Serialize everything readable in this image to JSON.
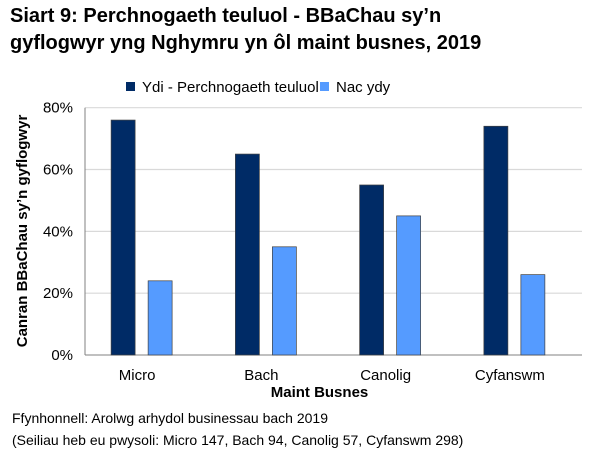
{
  "title_line1": "Siart 9: Perchnogaeth teuluol - BBaChau sy’n",
  "title_line2": "gyflogwyr yng Nghymru yn ôl maint busnes, 2019",
  "footer_line1": "Ffynhonnell: Arolwg arhydol businessau bach 2019",
  "footer_line2": "(Seiliau heb eu pwysoli: Micro 147, Bach 94, Canolig 57, Cyfanswm 298)",
  "chart_data": {
    "type": "bar",
    "categories": [
      "Micro",
      "Bach",
      "Canolig",
      "Cyfanswm"
    ],
    "series": [
      {
        "name": "Ydi - Perchnogaeth teuluol",
        "values": [
          76,
          65,
          55,
          74
        ],
        "color": "#002b66"
      },
      {
        "name": "Nac ydy",
        "values": [
          24,
          35,
          45,
          26
        ],
        "color": "#559bff"
      }
    ],
    "xlabel": "Maint Busnes",
    "ylabel": "Canran BBaChau sy’n gyflogwyr",
    "ylim": [
      0,
      80
    ],
    "yticks": [
      "0%",
      "20%",
      "40%",
      "60%",
      "80%"
    ],
    "grid": true,
    "legend": "top"
  }
}
